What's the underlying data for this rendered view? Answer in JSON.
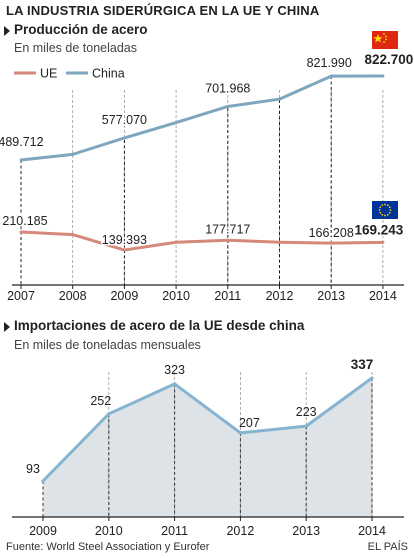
{
  "page": {
    "main_title": "LA INDUSTRIA SIDERÚRGICA EN LA UE Y CHINA",
    "source": "Fuente: World Steel Association y Eurofer",
    "publisher": "EL PAÍS"
  },
  "chart1": {
    "title": "Producción de acero",
    "subtitle": "En miles de toneladas"
  },
  "chart2": {
    "title": "Importaciones de acero de la UE desde china",
    "subtitle": "En miles de toneladas mensuales"
  },
  "colors": {
    "eu_line": "#d4897a",
    "china_line": "#7ea6bf",
    "imports_line": "#86b4d0",
    "imports_fill": "#dde3e7",
    "china_flag": "#de2910",
    "china_flag_star": "#ffde00",
    "eu_flag": "#003399",
    "eu_flag_star": "#ffcc00"
  },
  "chart_data": [
    {
      "type": "line",
      "title": "Producción de acero",
      "subtitle": "En miles de toneladas",
      "categories": [
        "2007",
        "2008",
        "2009",
        "2010",
        "2011",
        "2012",
        "2013",
        "2014"
      ],
      "series": [
        {
          "name": "UE",
          "values": [
            210.185,
            200,
            139.393,
            170,
            177.717,
            170,
            166.208,
            169.243
          ]
        },
        {
          "name": "China",
          "values": [
            489.712,
            512,
            577.07,
            638,
            701.968,
            731,
            821.99,
            822.7
          ]
        }
      ],
      "labels": [
        {
          "series": "China",
          "index": 0,
          "text": "489.712",
          "bold": false
        },
        {
          "series": "China",
          "index": 2,
          "text": "577.070",
          "bold": false
        },
        {
          "series": "China",
          "index": 4,
          "text": "701.968",
          "bold": false
        },
        {
          "series": "China",
          "index": 6,
          "text": "821.990",
          "bold": false
        },
        {
          "series": "China",
          "index": 7,
          "text": "822.700",
          "bold": true
        },
        {
          "series": "UE",
          "index": 0,
          "text": "210.185",
          "bold": false
        },
        {
          "series": "UE",
          "index": 2,
          "text": "139.393",
          "bold": false
        },
        {
          "series": "UE",
          "index": 4,
          "text": "177.717",
          "bold": false
        },
        {
          "series": "UE",
          "index": 6,
          "text": "166.208",
          "bold": false
        },
        {
          "series": "UE",
          "index": 7,
          "text": "169.243",
          "bold": true
        }
      ],
      "legend": {
        "placement": "top-left",
        "items": [
          "UE",
          "China"
        ]
      },
      "grid": "vertical-dashed"
    },
    {
      "type": "area",
      "title": "Importaciones de acero de la UE desde china",
      "subtitle": "En miles de toneladas mensuales",
      "categories": [
        "2009",
        "2010",
        "2011",
        "2012",
        "2013",
        "2014"
      ],
      "values": [
        93,
        252,
        323,
        207,
        223,
        337
      ],
      "labels": [
        "93",
        "252",
        "323",
        "207",
        "223",
        "337"
      ],
      "bold_index": 5,
      "grid": "vertical-dashed"
    }
  ]
}
